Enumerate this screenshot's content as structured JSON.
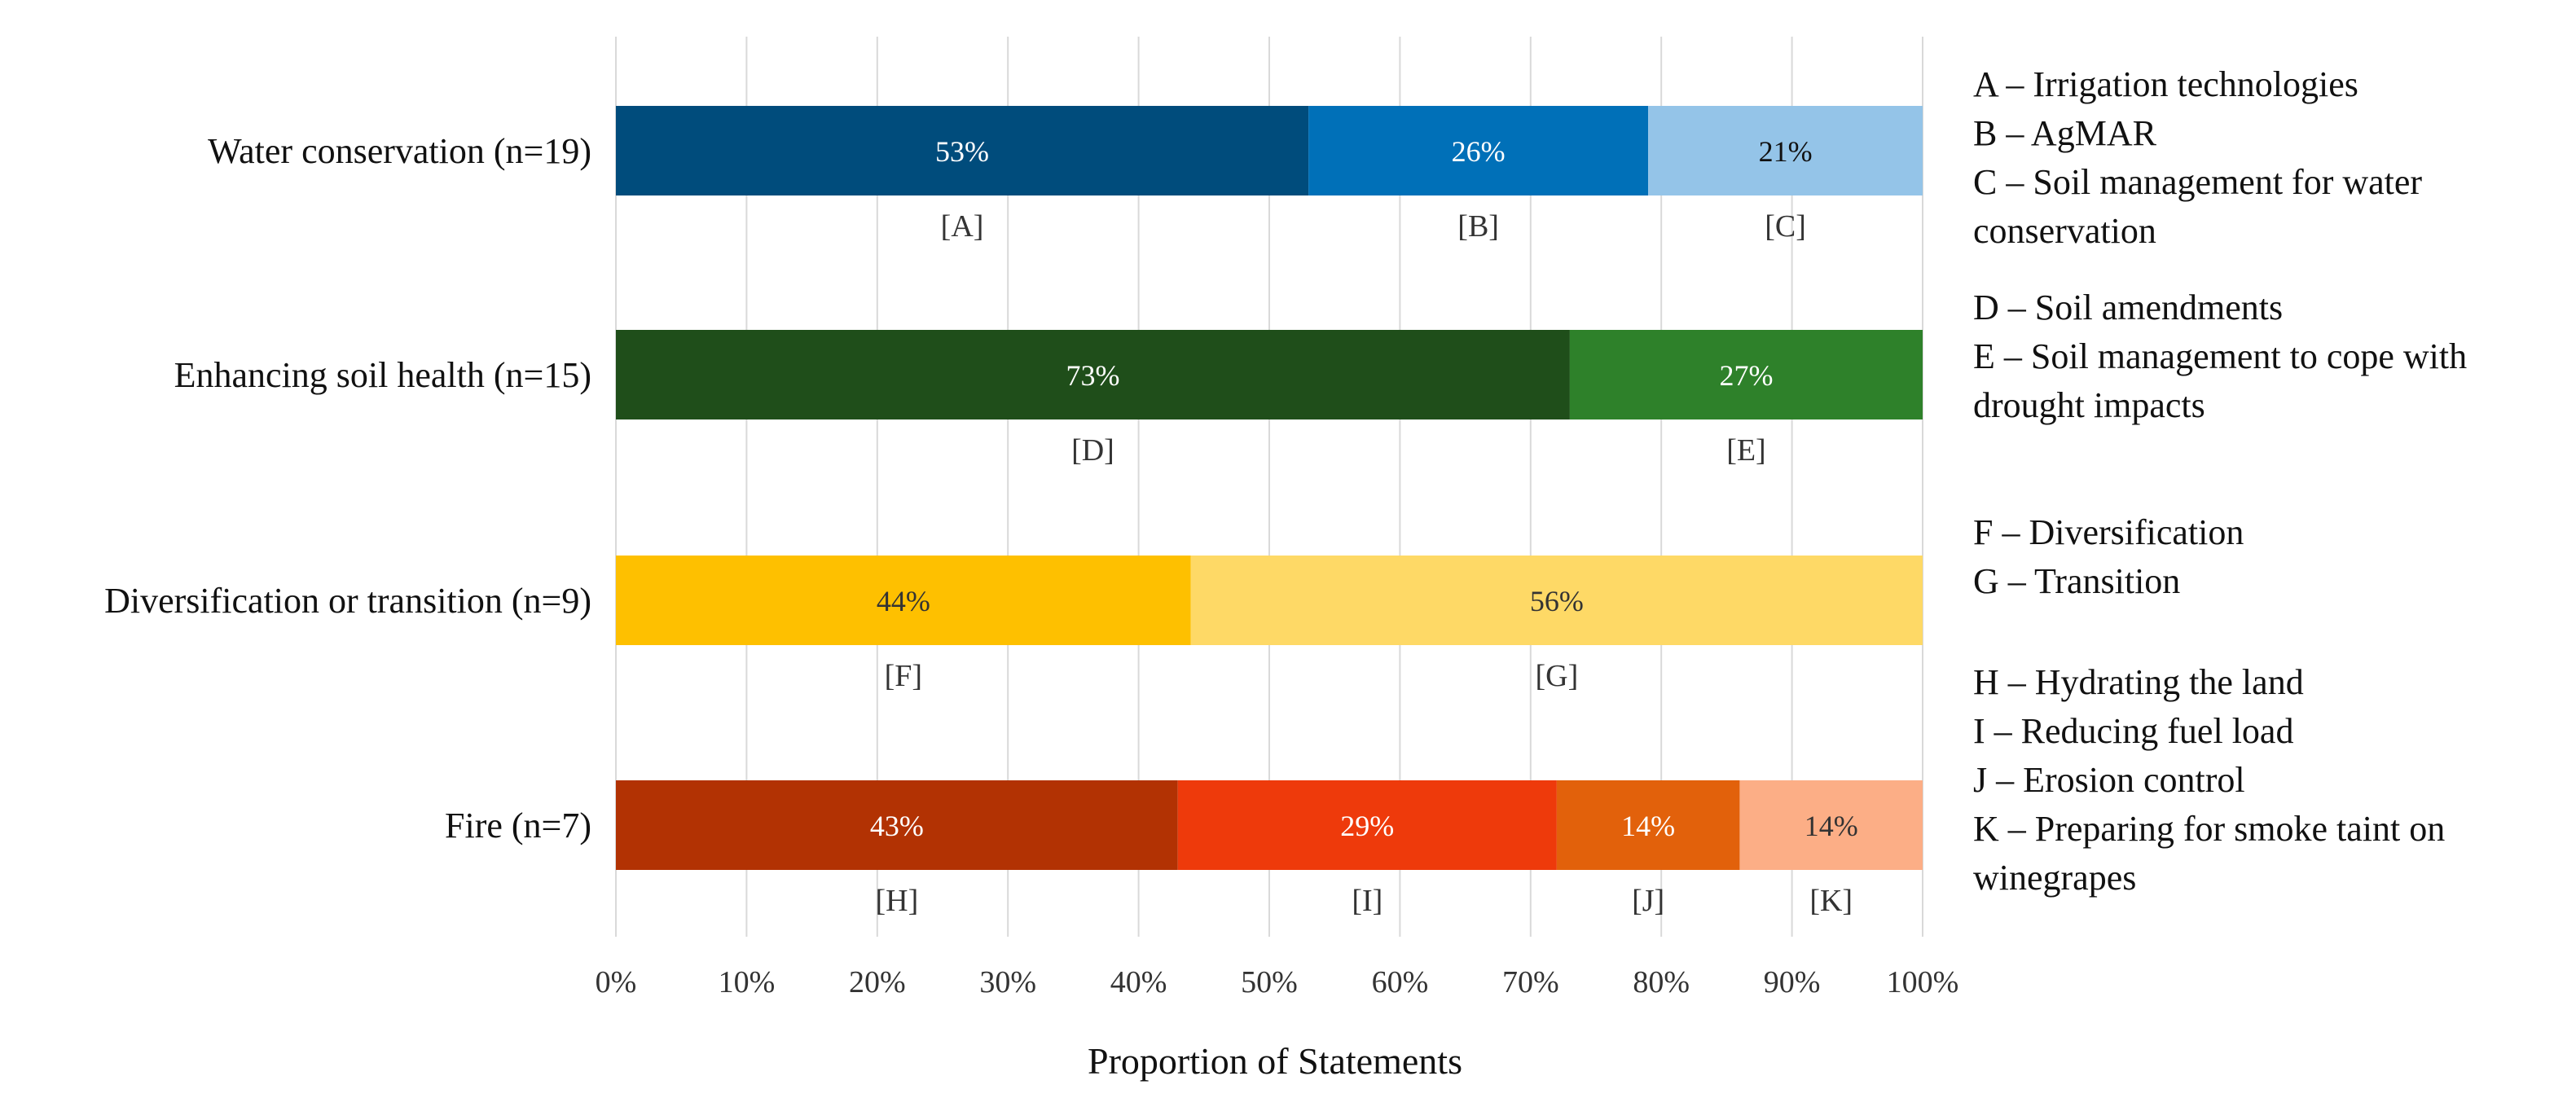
{
  "chart_data": {
    "type": "bar",
    "orientation": "horizontal",
    "stacked": true,
    "xlabel": "Proportion of Statements",
    "xlim": [
      0,
      100
    ],
    "xticks": [
      "0%",
      "10%",
      "20%",
      "30%",
      "40%",
      "50%",
      "60%",
      "70%",
      "80%",
      "90%",
      "100%"
    ],
    "grid": true,
    "categories": [
      {
        "label": "Water conservation (n=19)",
        "segments": [
          {
            "code": "[A]",
            "value": 53,
            "label": "53%",
            "color": "#004C7C",
            "text_color": "#ffffff"
          },
          {
            "code": "[B]",
            "value": 26,
            "label": "26%",
            "color": "#0070B8",
            "text_color": "#ffffff"
          },
          {
            "code": "[C]",
            "value": 21,
            "label": "21%",
            "color": "#94C4E8",
            "text_color": "#111111"
          }
        ]
      },
      {
        "label": "Enhancing soil health (n=15)",
        "segments": [
          {
            "code": "[D]",
            "value": 73,
            "label": "73%",
            "color": "#1F4E1A",
            "text_color": "#ffffff"
          },
          {
            "code": "[E]",
            "value": 27,
            "label": "27%",
            "color": "#2E812A",
            "text_color": "#ffffff"
          }
        ]
      },
      {
        "label": "Diversification or transition (n=9)",
        "segments": [
          {
            "code": "[F]",
            "value": 44,
            "label": "44%",
            "color": "#FEC000",
            "text_color": "#333333"
          },
          {
            "code": "[G]",
            "value": 56,
            "label": "56%",
            "color": "#FED966",
            "text_color": "#333333"
          }
        ]
      },
      {
        "label": "Fire (n=7)",
        "segments": [
          {
            "code": "[H]",
            "value": 43,
            "label": "43%",
            "color": "#B23203",
            "text_color": "#ffffff"
          },
          {
            "code": "[I]",
            "value": 29,
            "label": "29%",
            "color": "#EE3A0B",
            "text_color": "#ffffff"
          },
          {
            "code": "[J]",
            "value": 14,
            "label": "14%",
            "color": "#E2610B",
            "text_color": "#ffffff"
          },
          {
            "code": "[K]",
            "value": 14,
            "label": "14%",
            "color": "#FCAE86",
            "text_color": "#333333"
          }
        ]
      }
    ],
    "legend": {
      "position": "right",
      "groups": [
        [
          "A – Irrigation technologies",
          "B – AgMAR",
          "C – Soil management for water",
          "conservation"
        ],
        [
          "D – Soil amendments",
          "E – Soil management to cope with",
          "drought impacts"
        ],
        [
          "F – Diversification",
          "G – Transition"
        ],
        [
          "H – Hydrating the land",
          "I – Reducing fuel load",
          "J – Erosion control",
          "K – Preparing for smoke taint on",
          "winegrapes"
        ]
      ]
    }
  }
}
